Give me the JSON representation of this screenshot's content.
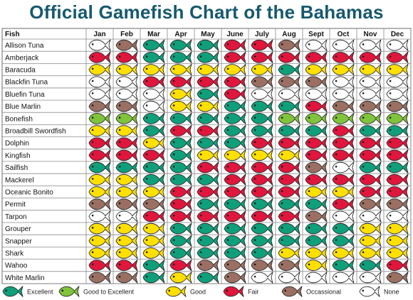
{
  "title": "Official Gamefish Chart of the Bahamas",
  "fish_header": "Fish",
  "months": [
    "Jan",
    "Feb",
    "Mar",
    "Apr",
    "May",
    "June",
    "July",
    "Aug",
    "Sept",
    "Oct",
    "Nov",
    "Dec"
  ],
  "ratings": {
    "E": {
      "label": "Excellent",
      "color": "#0fa07b"
    },
    "G": {
      "label": "Good to Excellent",
      "color": "#7fc43a"
    },
    "Y": {
      "label": "Good",
      "color": "#ffe000"
    },
    "F": {
      "label": "Fair",
      "color": "#e0163c"
    },
    "O": {
      "label": "Occassional",
      "color": "#9b7063"
    },
    "N": {
      "label": "None",
      "color": "#ffffff"
    }
  },
  "legend_order": [
    "E",
    "G",
    "Y",
    "F",
    "O",
    "N"
  ],
  "chart_data": {
    "type": "table",
    "title": "Official Gamefish Chart of the Bahamas",
    "columns": [
      "Jan",
      "Feb",
      "Mar",
      "Apr",
      "May",
      "June",
      "July",
      "Aug",
      "Sept",
      "Oct",
      "Nov",
      "Dec"
    ],
    "rows": [
      {
        "fish": "Allison Tuna",
        "ratings": [
          "N",
          "O",
          "E",
          "E",
          "E",
          "F",
          "F",
          "O",
          "N",
          "N",
          "N",
          "N"
        ]
      },
      {
        "fish": "Amberjack",
        "ratings": [
          "F",
          "F",
          "E",
          "E",
          "E",
          "F",
          "F",
          "F",
          "F",
          "F",
          "F",
          "F"
        ]
      },
      {
        "fish": "Baracuda",
        "ratings": [
          "Y",
          "Y",
          "Y",
          "Y",
          "Y",
          "Y",
          "Y",
          "E",
          "Y",
          "Y",
          "Y",
          "Y"
        ]
      },
      {
        "fish": "Blackfin Tuna",
        "ratings": [
          "N",
          "N",
          "F",
          "F",
          "F",
          "F",
          "O",
          "O",
          "O",
          "N",
          "N",
          "N"
        ]
      },
      {
        "fish": "Bluefin Tuna",
        "ratings": [
          "N",
          "N",
          "N",
          "Y",
          "E",
          "F",
          "N",
          "N",
          "N",
          "N",
          "N",
          "N"
        ]
      },
      {
        "fish": "Blue Marlin",
        "ratings": [
          "O",
          "O",
          "N",
          "Y",
          "Y",
          "E",
          "E",
          "E",
          "F",
          "O",
          "O",
          "O"
        ]
      },
      {
        "fish": "Bonefish",
        "ratings": [
          "G",
          "G",
          "E",
          "E",
          "E",
          "E",
          "E",
          "G",
          "G",
          "G",
          "G",
          "G"
        ]
      },
      {
        "fish": "Broadbill Swordfish",
        "ratings": [
          "Y",
          "Y",
          "E",
          "F",
          "F",
          "E",
          "E",
          "E",
          "E",
          "F",
          "E",
          "E"
        ]
      },
      {
        "fish": "Dolphin",
        "ratings": [
          "F",
          "F",
          "Y",
          "E",
          "E",
          "E",
          "F",
          "F",
          "F",
          "F",
          "F",
          "F"
        ]
      },
      {
        "fish": "Kingfish",
        "ratings": [
          "F",
          "F",
          "F",
          "E",
          "Y",
          "Y",
          "Y",
          "Y",
          "F",
          "F",
          "F",
          "F"
        ]
      },
      {
        "fish": "Sailfish",
        "ratings": [
          "E",
          "E",
          "E",
          "E",
          "F",
          "F",
          "F",
          "F",
          "O",
          "N",
          "E",
          "E"
        ]
      },
      {
        "fish": "Mackerel",
        "ratings": [
          "Y",
          "Y",
          "E",
          "E",
          "E",
          "F",
          "F",
          "F",
          "F",
          "F",
          "F",
          "F"
        ]
      },
      {
        "fish": "Oceanic Bonito",
        "ratings": [
          "Y",
          "Y",
          "Y",
          "F",
          "F",
          "F",
          "F",
          "F",
          "Y",
          "Y",
          "F",
          "F"
        ]
      },
      {
        "fish": "Permit",
        "ratings": [
          "O",
          "O",
          "O",
          "F",
          "E",
          "E",
          "E",
          "E",
          "E",
          "F",
          "O",
          "O"
        ]
      },
      {
        "fish": "Tarpon",
        "ratings": [
          "N",
          "N",
          "F",
          "F",
          "F",
          "F",
          "F",
          "F",
          "O",
          "N",
          "N",
          "N"
        ]
      },
      {
        "fish": "Grouper",
        "ratings": [
          "Y",
          "Y",
          "Y",
          "E",
          "E",
          "E",
          "E",
          "E",
          "E",
          "E",
          "Y",
          "Y"
        ]
      },
      {
        "fish": "Snapper",
        "ratings": [
          "Y",
          "Y",
          "Y",
          "E",
          "E",
          "E",
          "E",
          "E",
          "E",
          "E",
          "Y",
          "Y"
        ]
      },
      {
        "fish": "Shark",
        "ratings": [
          "Y",
          "Y",
          "Y",
          "E",
          "E",
          "E",
          "E",
          "Y",
          "Y",
          "Y",
          "Y",
          "Y"
        ]
      },
      {
        "fish": "Wahoo",
        "ratings": [
          "F",
          "F",
          "E",
          "F",
          "O",
          "O",
          "O",
          "O",
          "Y",
          "E",
          "E",
          "F"
        ]
      },
      {
        "fish": "White Marlin",
        "ratings": [
          "O",
          "O",
          "E",
          "Y",
          "E",
          "O",
          "N",
          "N",
          "N",
          "N",
          "N",
          "O"
        ]
      }
    ]
  }
}
